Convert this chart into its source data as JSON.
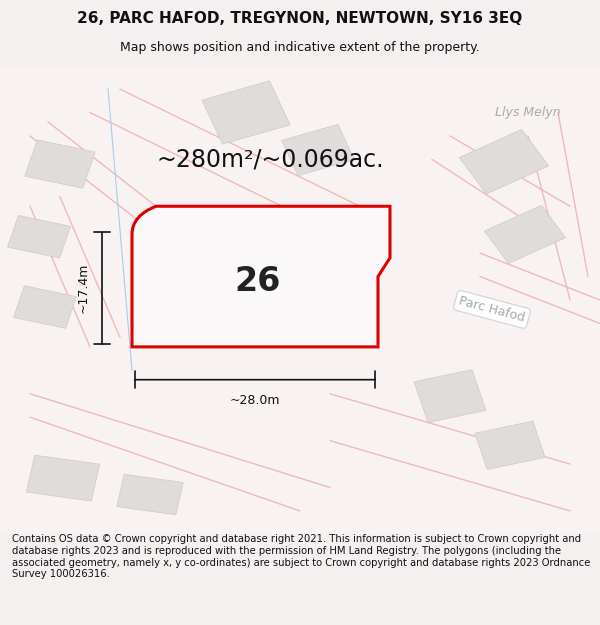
{
  "title": "26, PARC HAFOD, TREGYNON, NEWTOWN, SY16 3EQ",
  "subtitle": "Map shows position and indicative extent of the property.",
  "area_text": "~280m²/~0.069ac.",
  "dim_width": "~28.0m",
  "dim_height": "~17.4m",
  "label_number": "26",
  "label_street": "Parc Hafod",
  "label_llys": "Llys Melyn",
  "footer": "Contains OS data © Crown copyright and database right 2021. This information is subject to Crown copyright and database rights 2023 and is reproduced with the permission of HM Land Registry. The polygons (including the associated geometry, namely x, y co-ordinates) are subject to Crown copyright and database rights 2023 Ordnance Survey 100026316.",
  "bg_color": "#f5f0f0",
  "map_bg": "#ffffff",
  "plot_fill": "#ffffff",
  "plot_edge": "#cc0000",
  "road_color": "#f0c0c0",
  "building_color": "#e0dede",
  "building_edge": "#d0c8c8",
  "line_color": "#cc0000",
  "dim_line_color": "#111111",
  "text_color": "#111111",
  "street_label_color": "#999999",
  "title_fontsize": 11,
  "subtitle_fontsize": 9,
  "area_fontsize": 18,
  "number_fontsize": 22,
  "footer_fontsize": 7.2
}
